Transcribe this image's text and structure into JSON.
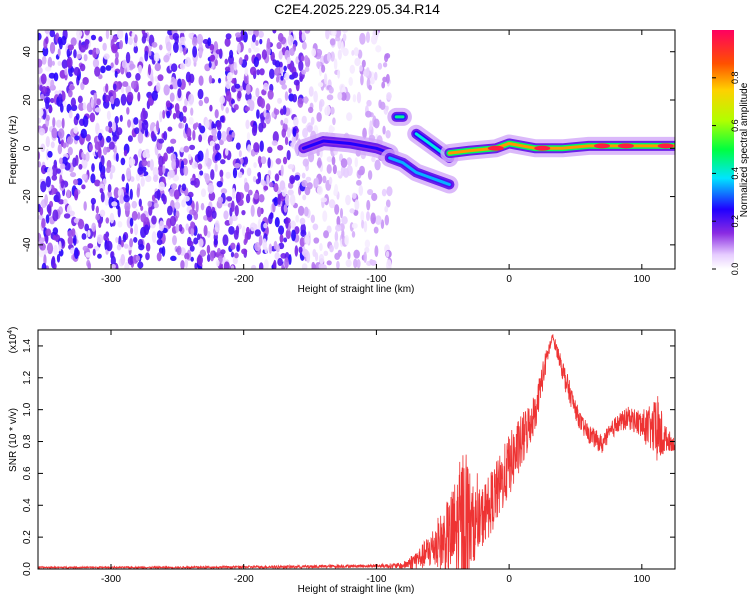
{
  "title": "C2E4.2025.229.05.34.R14",
  "chart_data": [
    {
      "type": "heatmap",
      "xlabel": "Height of straight line (km)",
      "ylabel": "Frequency (Hz)",
      "xlim": [
        -355,
        125
      ],
      "ylim": [
        -50,
        49
      ],
      "x_ticks": [
        -300,
        -200,
        -100,
        0,
        100
      ],
      "y_ticks": [
        -40,
        -20,
        0,
        20,
        40
      ],
      "colorbar": {
        "label": "Normalized spectral amplitude",
        "ticks": [
          "0.0",
          "0.2",
          "0.4",
          "0.6",
          "0.8"
        ],
        "range": [
          0,
          1
        ]
      },
      "traces": [
        {
          "x": [
            -155,
            -140,
            -120,
            -100,
            -90
          ],
          "y": [
            0,
            3,
            2,
            0,
            -2
          ],
          "amplitude": 0.25
        },
        {
          "x": [
            -90,
            -80,
            -70,
            -60,
            -50,
            -45
          ],
          "y": [
            -4,
            -6,
            -10,
            -12,
            -14,
            -15
          ],
          "amplitude": 0.35
        },
        {
          "x": [
            -85,
            -80
          ],
          "y": [
            13,
            13
          ],
          "amplitude": 0.45
        },
        {
          "x": [
            -70,
            -60,
            -50,
            -45
          ],
          "y": [
            6,
            2,
            -2,
            -4
          ],
          "amplitude": 0.4
        },
        {
          "x": [
            -45,
            -30,
            -10,
            0,
            20,
            40,
            60,
            80,
            100,
            125
          ],
          "y": [
            -2,
            -1,
            0,
            2,
            0,
            0,
            1,
            1,
            1,
            1
          ],
          "amplitude": 0.8
        }
      ],
      "noise_regions": [
        {
          "x_range": [
            -355,
            -155
          ],
          "amplitude": 0.25
        },
        {
          "x_range": [
            -155,
            -90
          ],
          "amplitude": 0.12
        }
      ]
    },
    {
      "type": "line",
      "xlabel": "Height of straight line (km)",
      "ylabel": "SNR (10 * v/v)",
      "y_multiplier": "(x10",
      "y_multiplier_exp": "4",
      "y_multiplier_close": ")",
      "xlim": [
        -355,
        125
      ],
      "ylim": [
        0,
        1.5
      ],
      "x_ticks": [
        -300,
        -200,
        -100,
        0,
        100
      ],
      "y_ticks": [
        "0.0",
        "0.2",
        "0.4",
        "0.6",
        "0.8",
        "1.0",
        "1.2",
        "1.4"
      ],
      "color": "#ee3333",
      "envelope": {
        "x": [
          -355,
          -250,
          -150,
          -100,
          -80,
          -65,
          -55,
          -45,
          -38,
          -33,
          -28,
          -22,
          -15,
          -8,
          0,
          10,
          20,
          25,
          30,
          33,
          37,
          42,
          50,
          55,
          60,
          70,
          80,
          90,
          95,
          100,
          108,
          112,
          118,
          125
        ],
        "base": [
          0.01,
          0.01,
          0.015,
          0.02,
          0.02,
          0.08,
          0.15,
          0.2,
          0.25,
          0.3,
          0.28,
          0.3,
          0.4,
          0.5,
          0.65,
          0.8,
          1.0,
          1.2,
          1.38,
          1.45,
          1.35,
          1.2,
          1.0,
          0.9,
          0.85,
          0.78,
          0.9,
          0.95,
          0.93,
          0.9,
          0.88,
          0.85,
          0.82,
          0.78
        ],
        "noise": [
          0.005,
          0.005,
          0.01,
          0.01,
          0.02,
          0.08,
          0.15,
          0.25,
          0.4,
          0.55,
          0.25,
          0.2,
          0.2,
          0.2,
          0.2,
          0.18,
          0.12,
          0.1,
          0.05,
          0.03,
          0.05,
          0.08,
          0.06,
          0.06,
          0.06,
          0.06,
          0.06,
          0.07,
          0.08,
          0.1,
          0.15,
          0.25,
          0.08,
          0.04
        ]
      }
    }
  ]
}
